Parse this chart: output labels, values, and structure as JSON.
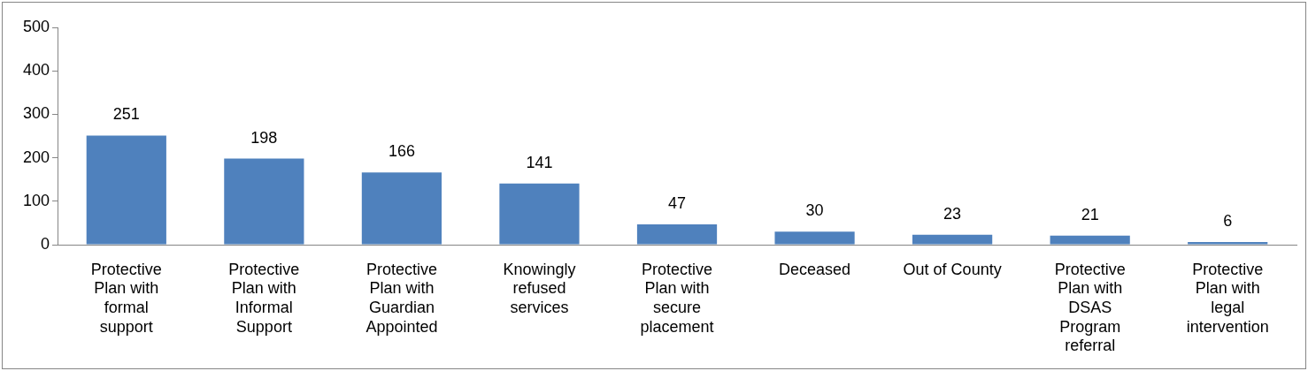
{
  "chart_data": {
    "type": "bar",
    "categories": [
      "Protective Plan with formal support",
      "Protective Plan with Informal Support",
      "Protective Plan with Guardian Appointed",
      "Knowingly refused services",
      "Protective Plan with secure placement",
      "Deceased",
      "Out of County",
      "Protective Plan with DSAS Program referral",
      "Protective Plan with legal intervention"
    ],
    "values": [
      251,
      198,
      166,
      141,
      47,
      30,
      23,
      21,
      6
    ],
    "color": "#4f81bd",
    "ylim": [
      0,
      500
    ],
    "yticks": [
      0,
      100,
      200,
      300,
      400,
      500
    ],
    "grid": false,
    "legend": false,
    "data_labels": true
  }
}
